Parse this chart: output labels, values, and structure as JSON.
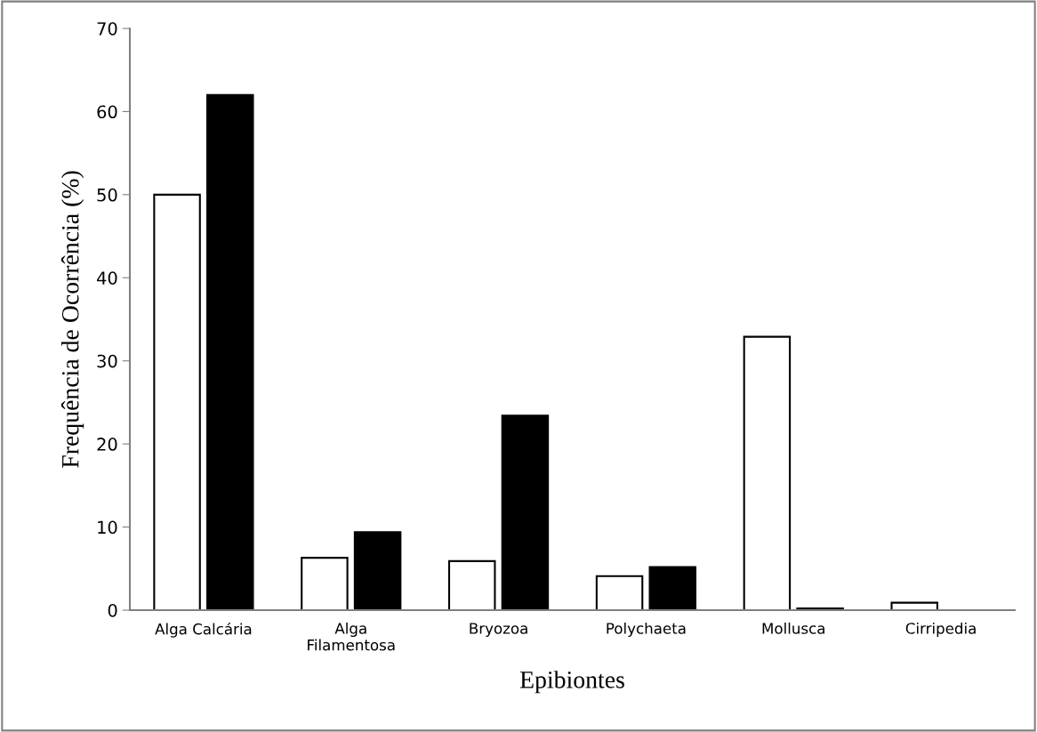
{
  "chart_data": {
    "type": "bar",
    "xlabel": "Epibiontes",
    "ylabel": "Frequência de Ocorrência (%)",
    "categories": [
      "Alga Calcária",
      "Alga\nFilamentosa",
      "Bryozoa",
      "Polychaeta",
      "Mollusca",
      "Cirripedia"
    ],
    "series": [
      {
        "color": "#ffffff",
        "values": [
          50,
          6.3,
          5.9,
          4.1,
          32.9,
          0.9
        ]
      },
      {
        "color": "#000000",
        "values": [
          62,
          9.4,
          23.4,
          5.2,
          0.2,
          0
        ]
      }
    ],
    "ylim": [
      0,
      70
    ],
    "yticks": [
      0,
      10,
      20,
      30,
      40,
      50,
      60,
      70
    ],
    "grid": false
  }
}
